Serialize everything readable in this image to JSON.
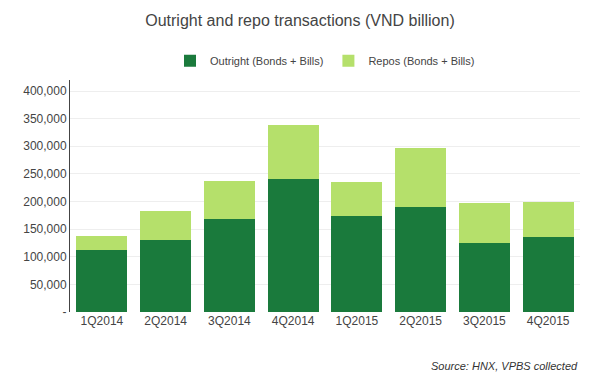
{
  "chart_data": {
    "type": "bar",
    "title": "Outright and repo transactions (VND billion)",
    "categories": [
      "1Q2014",
      "2Q2014",
      "3Q2014",
      "4Q2014",
      "1Q2015",
      "2Q2015",
      "3Q2015",
      "4Q2015"
    ],
    "series": [
      {
        "name": "Outright (Bonds + Bills)",
        "color": "#1a7a3c",
        "values": [
          112000,
          130000,
          168000,
          240000,
          173000,
          190000,
          125000,
          135000
        ]
      },
      {
        "name": "Repos (Bonds + Bills)",
        "color": "#b5e06b",
        "values": [
          25000,
          52000,
          70000,
          98000,
          62000,
          107000,
          72000,
          65000
        ]
      }
    ],
    "stacked": true,
    "ylim": [
      0,
      420000
    ],
    "yticks": [
      {
        "value": 0,
        "label": "-"
      },
      {
        "value": 50000,
        "label": "50,000"
      },
      {
        "value": 100000,
        "label": "100,000"
      },
      {
        "value": 150000,
        "label": "150,000"
      },
      {
        "value": 200000,
        "label": "200,000"
      },
      {
        "value": 250000,
        "label": "250,000"
      },
      {
        "value": 300000,
        "label": "300,000"
      },
      {
        "value": 350000,
        "label": "350,000"
      },
      {
        "value": 400000,
        "label": "400,000"
      }
    ],
    "grid": true,
    "legend": "top",
    "annotations": [
      "Source: HNX, VPBS collected"
    ]
  }
}
